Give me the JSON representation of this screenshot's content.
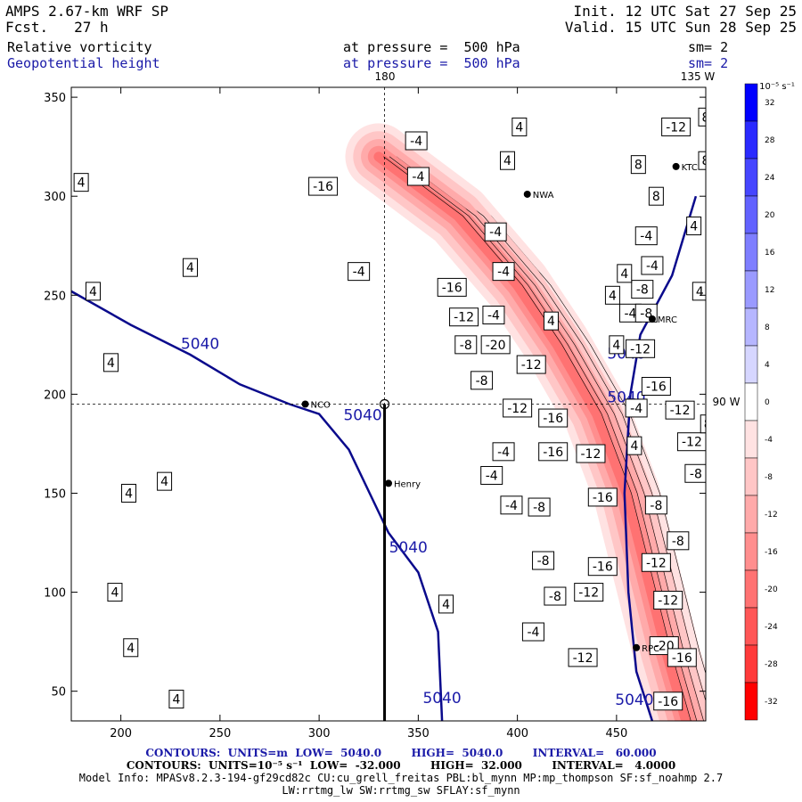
{
  "header": {
    "model": "AMPS 2.67-km WRF SP",
    "fcst": "Fcst.   27 h",
    "init": "Init. 12 UTC Sat 27 Sep 25",
    "valid": "Valid. 15 UTC Sun 28 Sep 25",
    "field1": "Relative vorticity",
    "field1_level": "at pressure =  500 hPa",
    "field1_sm": "sm= 2",
    "field2": "Geopotential height",
    "field2_level": "at pressure =  500 hPa",
    "field2_sm": "sm= 2"
  },
  "map_labels": {
    "lon_180": "180",
    "lon_135w": "135 W",
    "lon_90w": "90 W",
    "stations": [
      "NCO",
      "Henry",
      "MRC",
      "KTC",
      "RPC",
      "NWA"
    ]
  },
  "colorbar": {
    "unit": "10⁻⁵ s⁻¹",
    "ticks": [
      "32",
      "28",
      "24",
      "20",
      "16",
      "12",
      "8",
      "4",
      "0",
      "-4",
      "-8",
      "-12",
      "-16",
      "-20",
      "-24",
      "-28",
      "-32"
    ],
    "colors": [
      "#0000ff",
      "#2a2aff",
      "#4646ff",
      "#6262ff",
      "#7e7eff",
      "#9a9aff",
      "#b6b6ff",
      "#d6d6ff",
      "#ffffff",
      "#ffe2e2",
      "#ffc6c6",
      "#ffaaaa",
      "#ff8e8e",
      "#ff7272",
      "#ff5656",
      "#ff3a3a",
      "#ff0000"
    ]
  },
  "footer": {
    "line1": "CONTOURS:  UNITS=m  LOW=  5040.0        HIGH=  5040.0        INTERVAL=   60.000",
    "line2": "CONTOURS:  UNITS=10⁻⁵ s⁻¹  LOW=  -32.000        HIGH=  32.000        INTERVAL=   4.0000",
    "line3": "Model Info: MPASv8.2.3-194-gf29cd82c CU:cu_grell_freitas PBL:bl_mynn MP:mp_thompson SF:sf_noahmp 2.7",
    "line4": "LW:rrtmg_lw SW:rrtmg_sw SFLAY:sf_mynn"
  },
  "chart_data": {
    "type": "heatmap",
    "xlabel": "",
    "ylabel": "",
    "xlim": [
      175,
      495
    ],
    "ylim": [
      35,
      355
    ],
    "xticks": [
      200,
      250,
      300,
      350,
      400,
      450
    ],
    "yticks": [
      50,
      100,
      150,
      200,
      250,
      300,
      350
    ],
    "grid": false,
    "height_contour_label": "5040",
    "height_contour_5040_west": [
      [
        175,
        252
      ],
      [
        205,
        235
      ],
      [
        235,
        220
      ],
      [
        260,
        205
      ],
      [
        285,
        195
      ],
      [
        300,
        190
      ],
      [
        315,
        172
      ],
      [
        335,
        130
      ],
      [
        350,
        110
      ],
      [
        360,
        80
      ],
      [
        362,
        35
      ]
    ],
    "height_contour_5040_east": [
      [
        490,
        300
      ],
      [
        478,
        260
      ],
      [
        462,
        230
      ],
      [
        457,
        200
      ],
      [
        454,
        150
      ],
      [
        456,
        100
      ],
      [
        460,
        60
      ],
      [
        468,
        35
      ]
    ],
    "vorticity_band": [
      [
        330,
        320
      ],
      [
        370,
        290
      ],
      [
        400,
        255
      ],
      [
        420,
        225
      ],
      [
        440,
        190
      ],
      [
        455,
        150
      ],
      [
        465,
        110
      ],
      [
        475,
        70
      ],
      [
        485,
        35
      ]
    ],
    "contour_labels": [
      {
        "x": 180,
        "y": 307,
        "v": "4"
      },
      {
        "x": 235,
        "y": 264,
        "v": "4"
      },
      {
        "x": 186,
        "y": 252,
        "v": "4"
      },
      {
        "x": 195,
        "y": 216,
        "v": "4"
      },
      {
        "x": 222,
        "y": 156,
        "v": "4"
      },
      {
        "x": 204,
        "y": 150,
        "v": "4"
      },
      {
        "x": 197,
        "y": 100,
        "v": "4"
      },
      {
        "x": 205,
        "y": 72,
        "v": "4"
      },
      {
        "x": 228,
        "y": 46,
        "v": "4"
      },
      {
        "x": 364,
        "y": 94,
        "v": "4"
      },
      {
        "x": 302,
        "y": 305,
        "v": "-16"
      },
      {
        "x": 320,
        "y": 262,
        "v": "-4"
      },
      {
        "x": 350,
        "y": 310,
        "v": "-4"
      },
      {
        "x": 367,
        "y": 254,
        "v": "-16"
      },
      {
        "x": 373,
        "y": 239,
        "v": "-12"
      },
      {
        "x": 388,
        "y": 240,
        "v": "-4"
      },
      {
        "x": 389,
        "y": 282,
        "v": "-4"
      },
      {
        "x": 393,
        "y": 262,
        "v": "-4"
      },
      {
        "x": 374,
        "y": 225,
        "v": "-8"
      },
      {
        "x": 389,
        "y": 225,
        "v": "-20"
      },
      {
        "x": 407,
        "y": 215,
        "v": "-12"
      },
      {
        "x": 382,
        "y": 207,
        "v": "-8"
      },
      {
        "x": 400,
        "y": 193,
        "v": "-12"
      },
      {
        "x": 418,
        "y": 188,
        "v": "-16"
      },
      {
        "x": 393,
        "y": 171,
        "v": "-4"
      },
      {
        "x": 418,
        "y": 171,
        "v": "-16"
      },
      {
        "x": 437,
        "y": 170,
        "v": "-12"
      },
      {
        "x": 443,
        "y": 148,
        "v": "-16"
      },
      {
        "x": 397,
        "y": 144,
        "v": "-4"
      },
      {
        "x": 411,
        "y": 143,
        "v": "-8"
      },
      {
        "x": 470,
        "y": 144,
        "v": "-8"
      },
      {
        "x": 481,
        "y": 126,
        "v": "-8"
      },
      {
        "x": 387,
        "y": 159,
        "v": "-4"
      },
      {
        "x": 413,
        "y": 116,
        "v": "-8"
      },
      {
        "x": 443,
        "y": 113,
        "v": "-16"
      },
      {
        "x": 470,
        "y": 115,
        "v": "-12"
      },
      {
        "x": 436,
        "y": 100,
        "v": "-12"
      },
      {
        "x": 419,
        "y": 98,
        "v": "-8"
      },
      {
        "x": 476,
        "y": 96,
        "v": "-12"
      },
      {
        "x": 408,
        "y": 80,
        "v": "-4"
      },
      {
        "x": 433,
        "y": 67,
        "v": "-12"
      },
      {
        "x": 474,
        "y": 73,
        "v": "-20"
      },
      {
        "x": 483,
        "y": 67,
        "v": "-16"
      },
      {
        "x": 476,
        "y": 45,
        "v": "-16"
      },
      {
        "x": 465,
        "y": 280,
        "v": "-4"
      },
      {
        "x": 468,
        "y": 265,
        "v": "-4"
      },
      {
        "x": 463,
        "y": 253,
        "v": "-8"
      },
      {
        "x": 448,
        "y": 250,
        "v": "4"
      },
      {
        "x": 454,
        "y": 261,
        "v": "4"
      },
      {
        "x": 450,
        "y": 225,
        "v": "4"
      },
      {
        "x": 457,
        "y": 241,
        "v": "-4"
      },
      {
        "x": 465,
        "y": 241,
        "v": "-8"
      },
      {
        "x": 462,
        "y": 223,
        "v": "-12"
      },
      {
        "x": 470,
        "y": 204,
        "v": "-16"
      },
      {
        "x": 482,
        "y": 192,
        "v": "-12"
      },
      {
        "x": 488,
        "y": 176,
        "v": "-12"
      },
      {
        "x": 496,
        "y": 185,
        "v": "8"
      },
      {
        "x": 490,
        "y": 160,
        "v": "-8"
      },
      {
        "x": 459,
        "y": 174,
        "v": "4"
      },
      {
        "x": 460,
        "y": 193,
        "v": "-4"
      },
      {
        "x": 499,
        "y": 236,
        "v": "8"
      },
      {
        "x": 492,
        "y": 252,
        "v": "4"
      },
      {
        "x": 489,
        "y": 285,
        "v": "4"
      },
      {
        "x": 495,
        "y": 318,
        "v": "8"
      },
      {
        "x": 480,
        "y": 335,
        "v": "-12"
      },
      {
        "x": 495,
        "y": 340,
        "v": "8"
      },
      {
        "x": 401,
        "y": 335,
        "v": "4"
      },
      {
        "x": 395,
        "y": 318,
        "v": "4"
      },
      {
        "x": 349,
        "y": 328,
        "v": "-4"
      },
      {
        "x": 461,
        "y": 316,
        "v": "8"
      },
      {
        "x": 470,
        "y": 300,
        "v": "8"
      },
      {
        "x": 417,
        "y": 237,
        "v": "4"
      }
    ],
    "stations": [
      {
        "name": "NCO",
        "x": 293,
        "y": 195
      },
      {
        "name": "Henry",
        "x": 335,
        "y": 155
      },
      {
        "name": "MRC",
        "x": 468,
        "y": 238
      },
      {
        "name": "KTC",
        "x": 480,
        "y": 315
      },
      {
        "name": "RPC",
        "x": 460,
        "y": 72
      },
      {
        "name": "NWA",
        "x": 405,
        "y": 301
      }
    ],
    "pole": {
      "x": 333,
      "y": 195
    }
  }
}
